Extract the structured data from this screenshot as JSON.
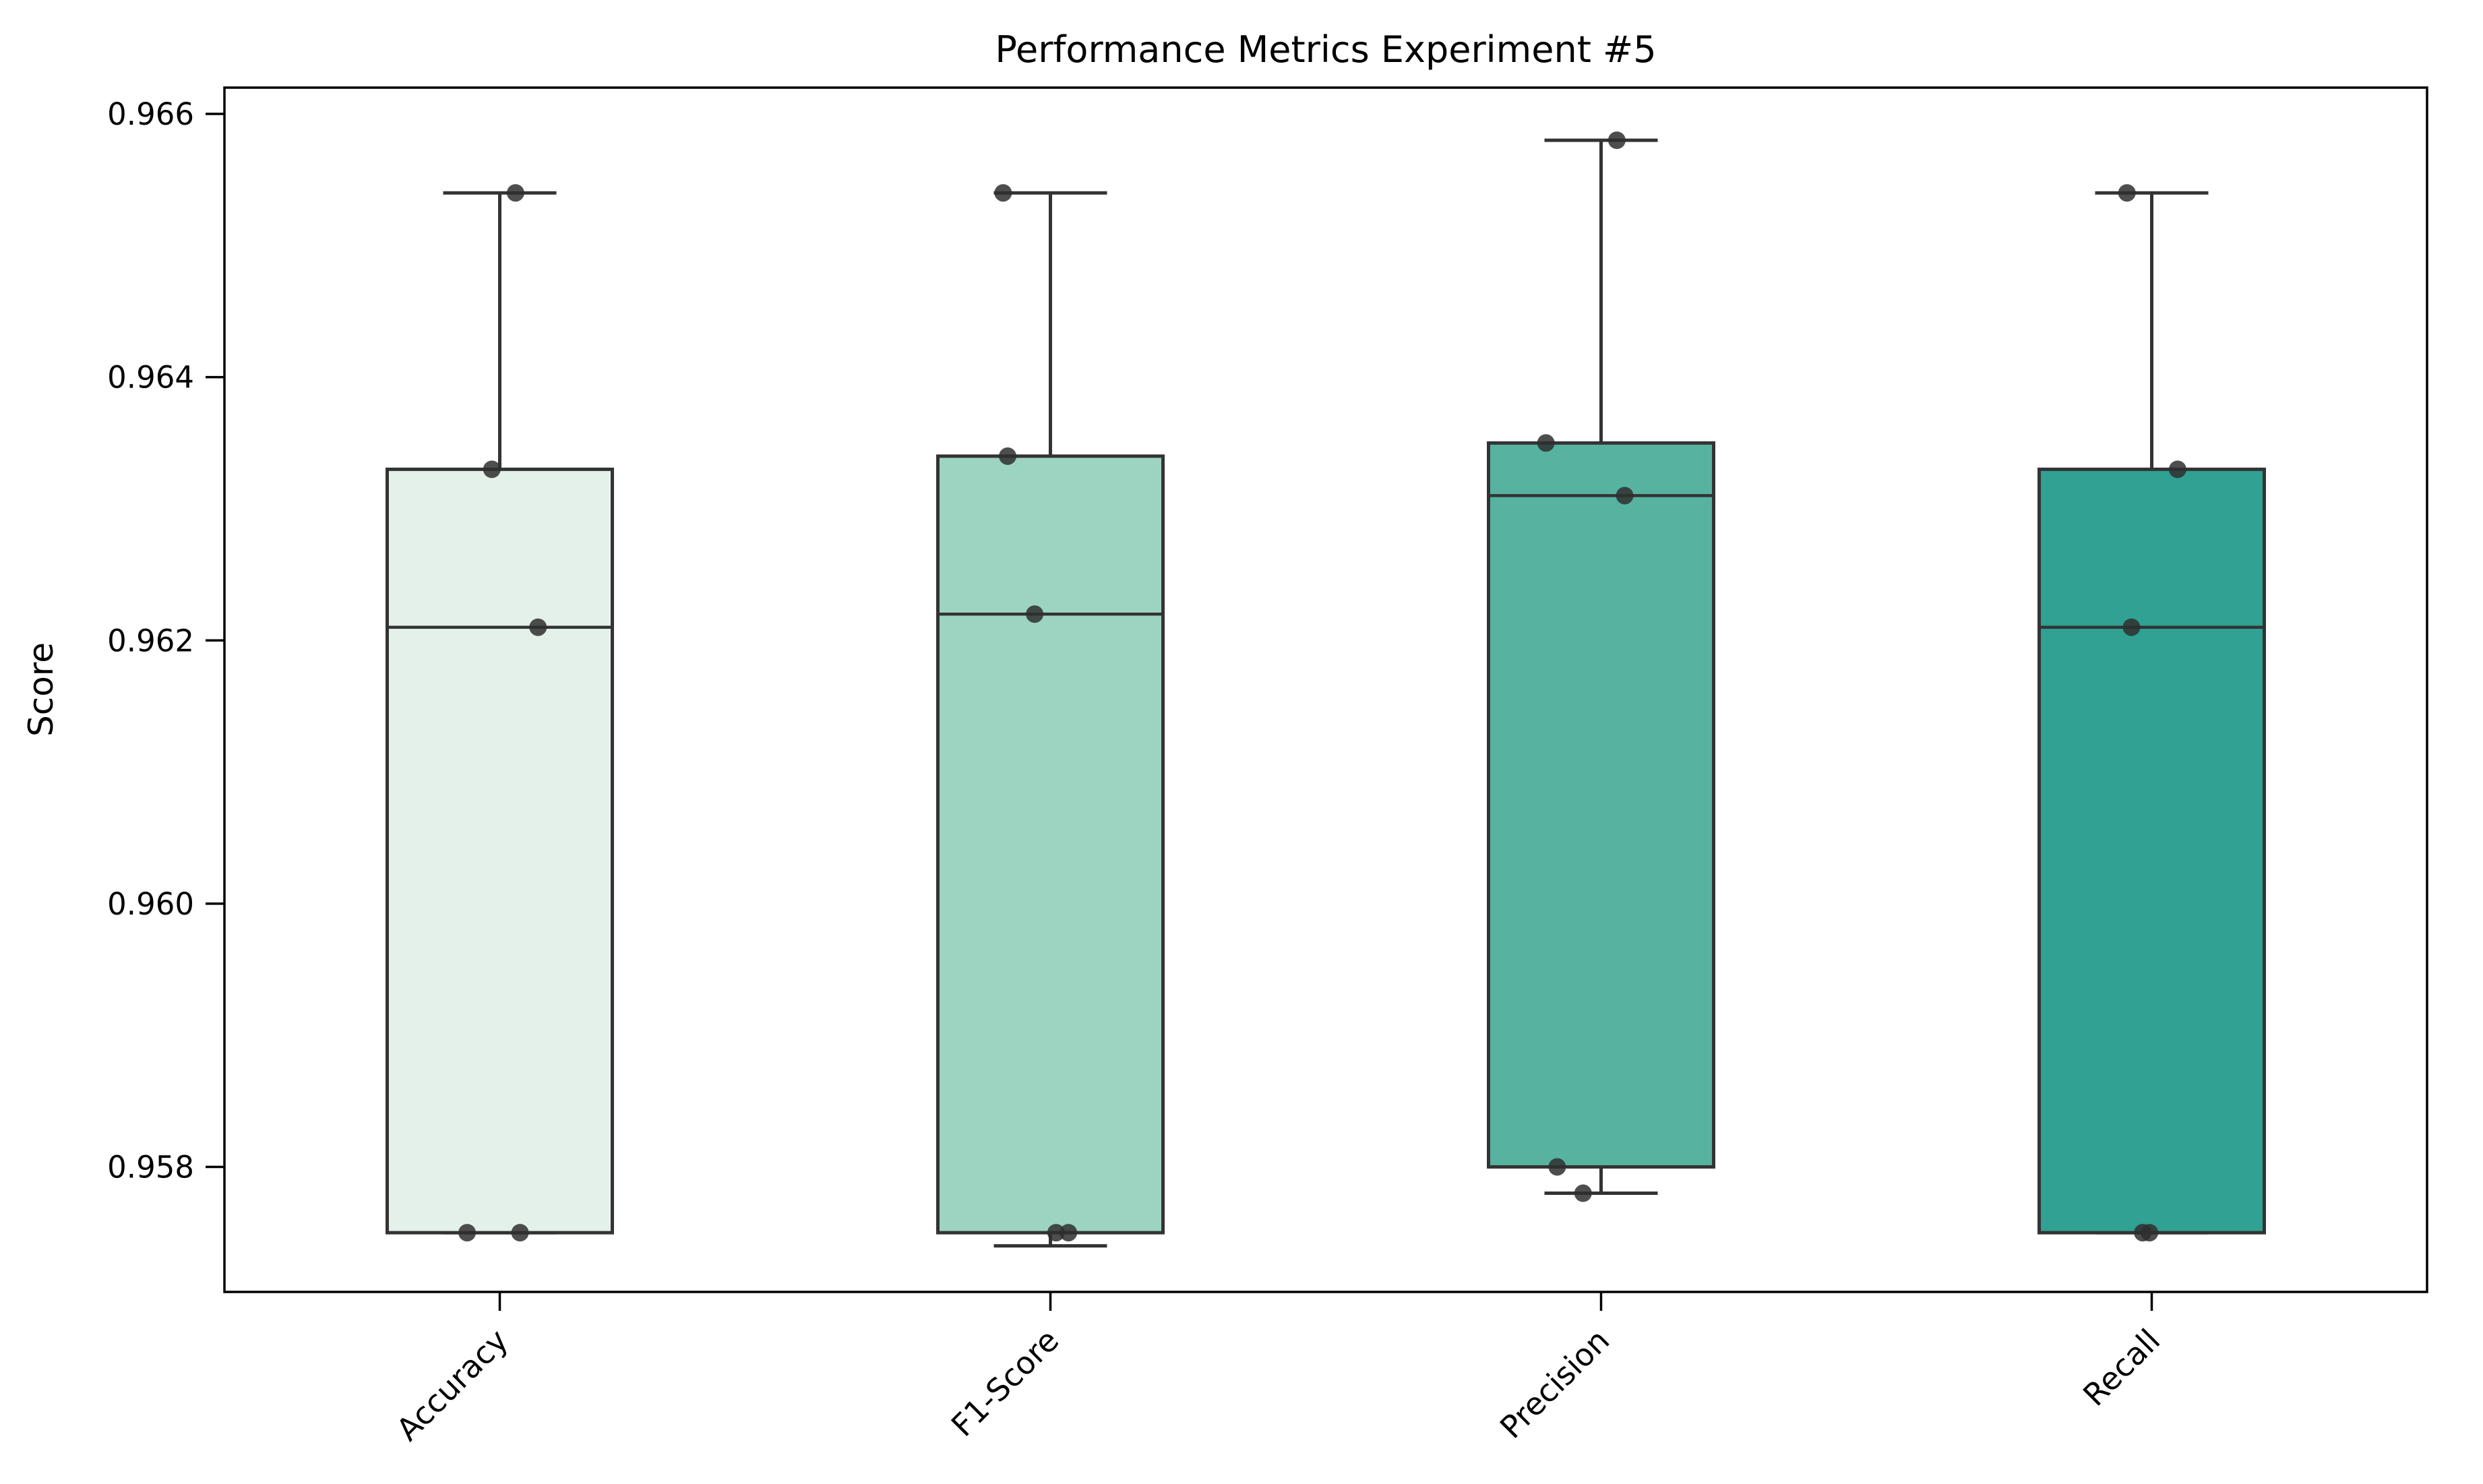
{
  "figure": {
    "background": "#ffffff",
    "spine_color": "#000000"
  },
  "chart_data": {
    "type": "box",
    "title": "Performance Metrics Experiment #5",
    "ylabel": "Score",
    "xlabel": "",
    "categories": [
      "Accuracy",
      "F1-Score",
      "Precision",
      "Recall"
    ],
    "ylim": [
      0.95705,
      0.9662
    ],
    "yticks": [
      0.958,
      0.96,
      0.962,
      0.964,
      0.966
    ],
    "ytick_labels": [
      "0.958",
      "0.960",
      "0.962",
      "0.964",
      "0.966"
    ],
    "grid": false,
    "legend": null,
    "x_label_rotation_deg": 45,
    "box_colors": [
      "#e3f1ea",
      "#9dd4c1",
      "#57b3a0",
      "#30a192"
    ],
    "edge_color": "#333333",
    "median_color": "#333333",
    "whisker_color": "#333333",
    "point_color": "#2f2f2f",
    "point_opacity": 0.85,
    "series": [
      {
        "name": "Accuracy",
        "min": 0.9575,
        "q1": 0.9575,
        "median": 0.9621,
        "q3": 0.9633,
        "max": 0.9654,
        "points": [
          {
            "v": 0.9654,
            "dx": 0.14
          },
          {
            "v": 0.9633,
            "dx": -0.07
          },
          {
            "v": 0.9621,
            "dx": 0.34
          },
          {
            "v": 0.9575,
            "dx": -0.29
          },
          {
            "v": 0.9575,
            "dx": 0.18
          }
        ]
      },
      {
        "name": "F1-Score",
        "min": 0.9574,
        "q1": 0.9575,
        "median": 0.9622,
        "q3": 0.9634,
        "max": 0.9654,
        "points": [
          {
            "v": 0.9654,
            "dx": -0.42
          },
          {
            "v": 0.9634,
            "dx": -0.38
          },
          {
            "v": 0.9622,
            "dx": -0.14
          },
          {
            "v": 0.9575,
            "dx": 0.05
          },
          {
            "v": 0.9575,
            "dx": 0.16
          }
        ]
      },
      {
        "name": "Precision",
        "min": 0.9578,
        "q1": 0.958,
        "median": 0.9631,
        "q3": 0.9635,
        "max": 0.9658,
        "points": [
          {
            "v": 0.9658,
            "dx": 0.14
          },
          {
            "v": 0.9635,
            "dx": -0.49
          },
          {
            "v": 0.9631,
            "dx": 0.21
          },
          {
            "v": 0.958,
            "dx": -0.39
          },
          {
            "v": 0.9578,
            "dx": -0.16
          }
        ]
      },
      {
        "name": "Recall",
        "min": 0.9575,
        "q1": 0.9575,
        "median": 0.9621,
        "q3": 0.9633,
        "max": 0.9654,
        "points": [
          {
            "v": 0.9654,
            "dx": -0.22
          },
          {
            "v": 0.9633,
            "dx": 0.23
          },
          {
            "v": 0.9621,
            "dx": -0.18
          },
          {
            "v": 0.9575,
            "dx": -0.08
          },
          {
            "v": 0.9575,
            "dx": -0.02
          }
        ]
      }
    ]
  }
}
